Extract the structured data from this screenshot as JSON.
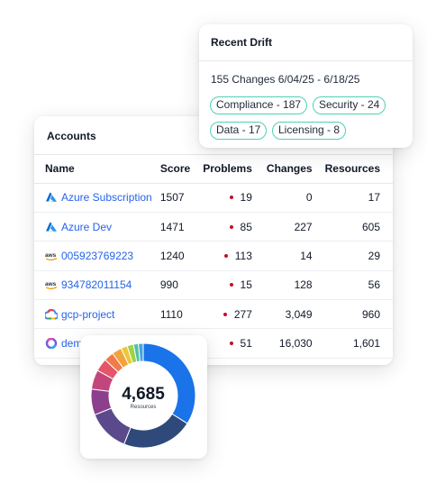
{
  "accounts": {
    "title": "Accounts",
    "columns": {
      "name": "Name",
      "score": "Score",
      "problems": "Problems",
      "changes": "Changes",
      "resources": "Resources"
    },
    "rows": [
      {
        "name": "Azure Subscription",
        "provider": "azure-icon",
        "score": "1507",
        "problems": "19",
        "changes": "0",
        "resources": "17"
      },
      {
        "name": "Azure Dev",
        "provider": "azure-icon",
        "score": "1471",
        "problems": "85",
        "changes": "227",
        "resources": "605"
      },
      {
        "name": "005923769223",
        "provider": "aws-icon",
        "score": "1240",
        "problems": "113",
        "changes": "14",
        "resources": "29"
      },
      {
        "name": "934782011154",
        "provider": "aws-icon",
        "score": "990",
        "problems": "15",
        "changes": "128",
        "resources": "56"
      },
      {
        "name": "gcp-project",
        "provider": "gcp-icon",
        "score": "1110",
        "problems": "277",
        "changes": "3,049",
        "resources": "960"
      },
      {
        "name": "dem",
        "provider": "m365-icon",
        "score": "",
        "problems": "51",
        "changes": "16,030",
        "resources": "1,601"
      }
    ]
  },
  "drift": {
    "title": "Recent Drift",
    "summary": "155 Changes 6/04/25 - 6/18/25",
    "tags": [
      "Compliance - 187",
      "Security - 24",
      "Data - 17",
      "Licensing - 8"
    ],
    "tag_border_color": "#4fd1b3"
  },
  "donut": {
    "total": "4,685",
    "label": "Resources",
    "segments": [
      {
        "color": "#1a73e8",
        "value": 34
      },
      {
        "color": "#2f4a7a",
        "value": 22
      },
      {
        "color": "#5b4a8b",
        "value": 13
      },
      {
        "color": "#8c3f8c",
        "value": 8
      },
      {
        "color": "#c2457b",
        "value": 6
      },
      {
        "color": "#e5556a",
        "value": 4
      },
      {
        "color": "#f07a4a",
        "value": 3
      },
      {
        "color": "#f2a33a",
        "value": 3
      },
      {
        "color": "#e8c93a",
        "value": 2
      },
      {
        "color": "#a3cf4a",
        "value": 2
      },
      {
        "color": "#4cc3a3",
        "value": 1.5
      },
      {
        "color": "#4aa3e0",
        "value": 1.5
      }
    ]
  }
}
